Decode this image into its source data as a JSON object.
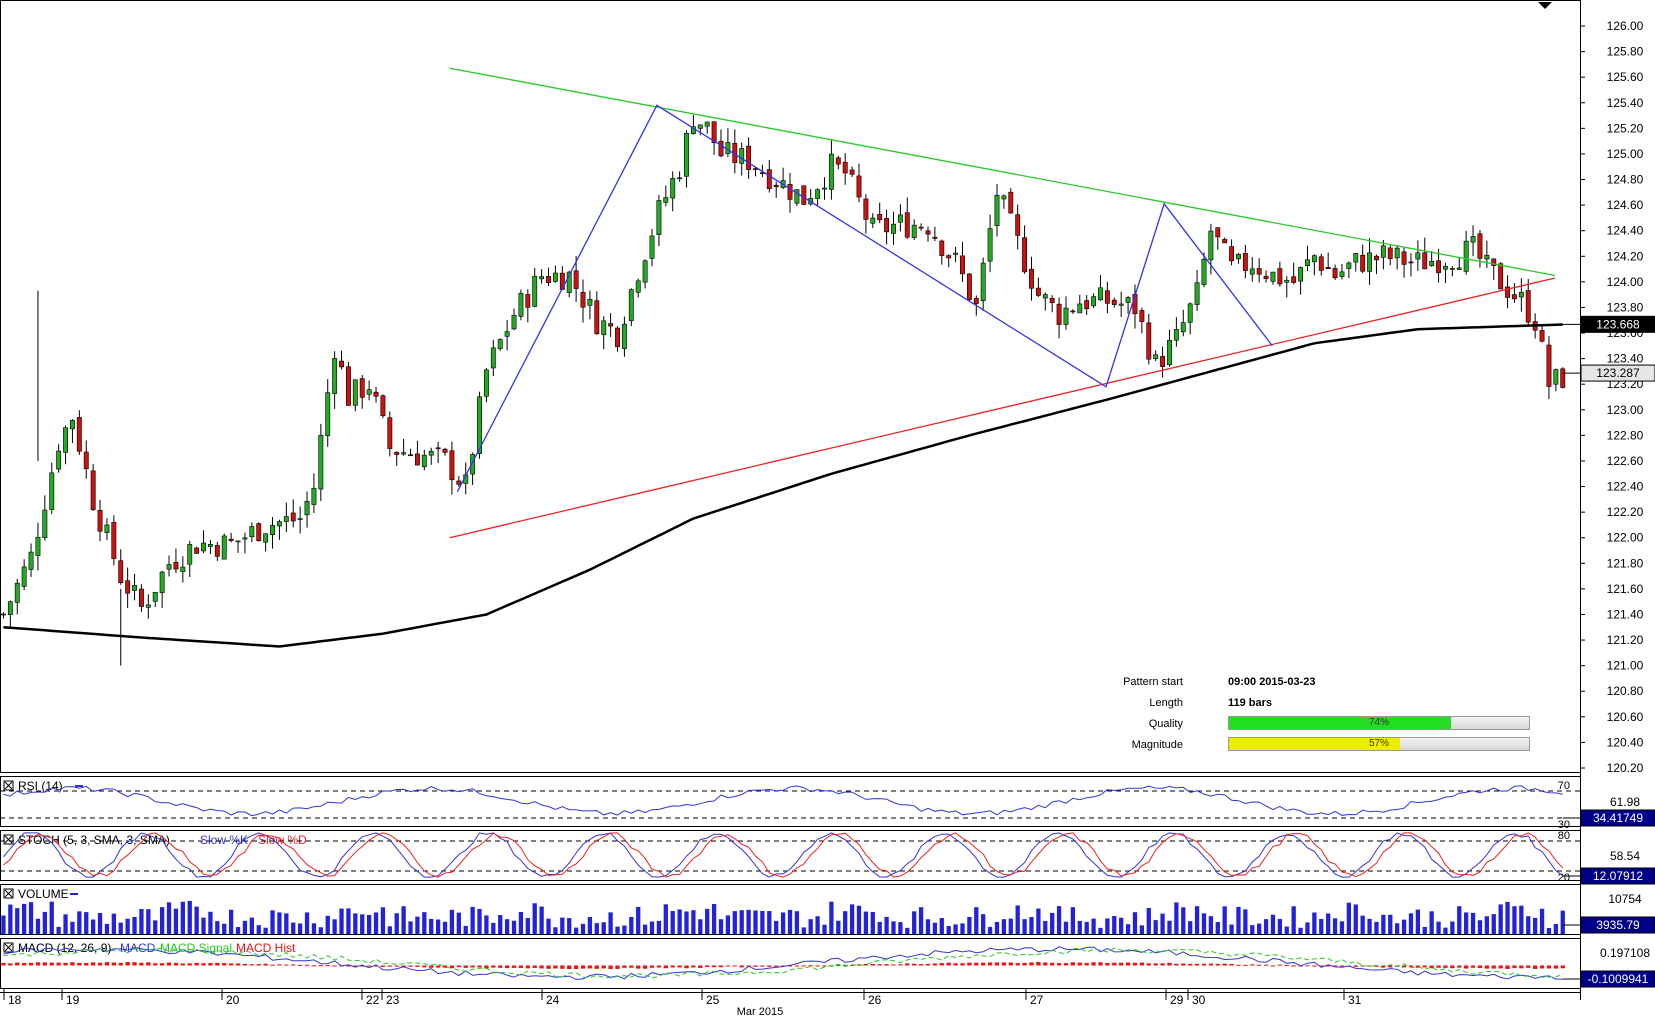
{
  "chart_data": {
    "type": "candlestick",
    "symbol_period": "H1",
    "price_axis": {
      "ticks": [
        "126.00",
        "125.80",
        "125.60",
        "125.40",
        "125.20",
        "125.00",
        "124.80",
        "124.60",
        "124.40",
        "124.20",
        "124.00",
        "123.80",
        "123.60",
        "123.40",
        "123.20",
        "123.00",
        "122.80",
        "122.60",
        "122.40",
        "122.20",
        "122.00",
        "121.80",
        "121.60",
        "121.40",
        "121.20",
        "121.00",
        "120.80",
        "120.60",
        "120.40",
        "120.20"
      ],
      "range": [
        120.2,
        126.1
      ],
      "price_labels": [
        {
          "value": 123.668,
          "text": "123.668",
          "style": "dark"
        },
        {
          "value": 123.287,
          "text": "123.287",
          "style": "light"
        }
      ]
    },
    "time_axis": {
      "labels": [
        "18",
        "19",
        "20",
        "22",
        "23",
        "24",
        "25",
        "26",
        "27",
        "29",
        "30",
        "31"
      ],
      "month_label": "Mar 2015"
    },
    "patterns": {
      "resistance_line": {
        "from": {
          "bar": 55,
          "price": 125.67
        },
        "to": {
          "bar": 187,
          "price": 124.05
        },
        "color": "#22cc22"
      },
      "support_line": {
        "from": {
          "bar": 55,
          "price": 122.0
        },
        "to": {
          "bar": 187,
          "price": 124.03
        },
        "color": "#ee2222"
      },
      "zigzag": [
        {
          "bar": 55,
          "price": 122.36
        },
        {
          "bar": 79,
          "price": 125.38
        },
        {
          "bar": 133,
          "price": 123.18
        },
        {
          "bar": 140,
          "price": 124.61
        },
        {
          "bar": 153,
          "price": 123.5
        }
      ],
      "moving_average_color": "#000000"
    },
    "pattern_info": {
      "pattern_start_label": "Pattern start",
      "pattern_start": "09:00 2015-03-23",
      "length_label": "Length",
      "length": "119 bars",
      "quality_label": "Quality",
      "quality": 0.74,
      "quality_text": "74%",
      "magnitude_label": "Magnitude",
      "magnitude": 0.57,
      "magnitude_text": "57%"
    },
    "indicators": {
      "rsi": {
        "label": "RSI (14)",
        "levels": [
          "70",
          "30"
        ],
        "value_label": "61.98",
        "current": "34.41749"
      },
      "stoch": {
        "label": "STOCH (5, 3, SMA, 3, SMA)",
        "legend": [
          "Slow %K",
          "Slow %D"
        ],
        "levels": [
          "80",
          "20"
        ],
        "value_label": "58.54",
        "current": "12.07912"
      },
      "volume": {
        "label": "VOLUME",
        "value_label": "10754",
        "current": "3935.79"
      },
      "macd": {
        "label": "MACD (12, 26, 9)",
        "legend": [
          "MACD",
          "MACD Signal",
          "MACD Hist"
        ],
        "value_label": "0.197108",
        "current": "-0.1009941"
      }
    },
    "colors": {
      "bull": "#22aa22",
      "bear": "#cc1111",
      "resistance": "#22cc22",
      "support": "#ee2222",
      "zigzag": "#3333ee",
      "rsi": "#3333dd",
      "stoch_k": "#3333dd",
      "stoch_d": "#ee2222",
      "volume": "#2222dd",
      "macd": "#3333dd",
      "macd_signal": "#22cc22",
      "macd_hist": "#ee1111",
      "quality_fill": "#22dd22",
      "magnitude_fill": "#eeee00"
    }
  }
}
